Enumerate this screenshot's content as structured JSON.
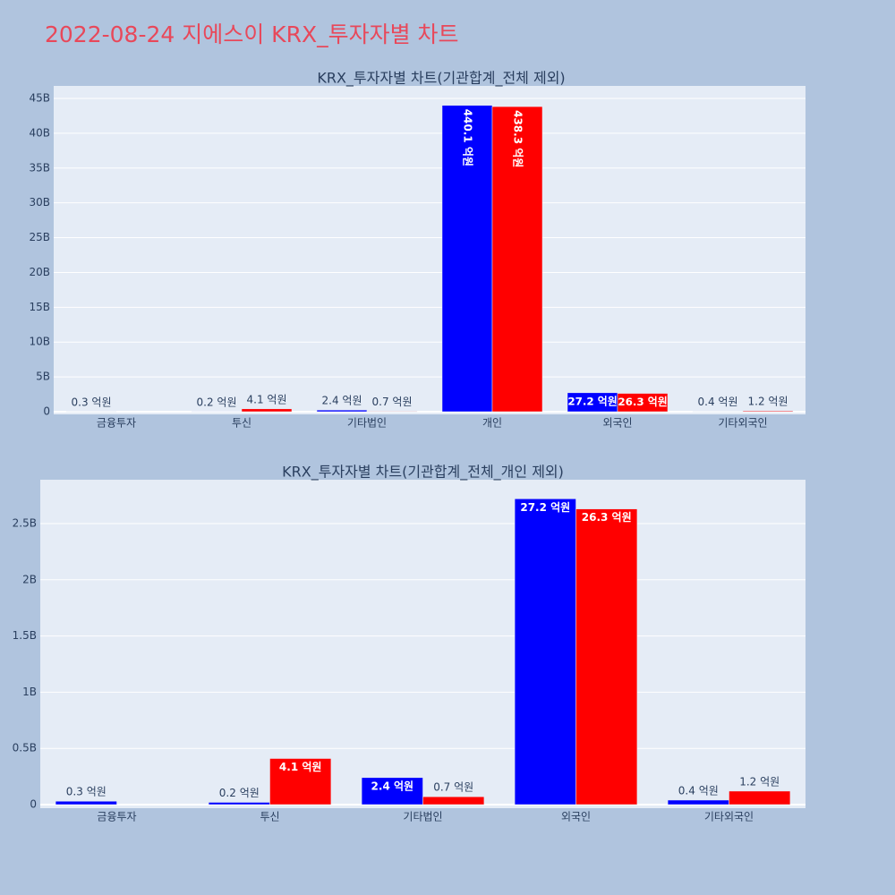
{
  "title": "2022-08-24 지에스이 KRX_투자자별 차트",
  "chart_data": [
    {
      "type": "bar",
      "title": "KRX_투자자별 차트(기관합계_전체 제외)",
      "categories": [
        "금융투자",
        "투신",
        "기타법인",
        "개인",
        "외국인",
        "기타외국인"
      ],
      "series": [
        {
          "color": "#0000ff",
          "values": [
            30000000,
            20000000,
            240000000,
            44010000000,
            2720000000,
            40000000
          ],
          "value_labels": [
            "0.3 억원",
            "0.2 억원",
            "2.4 억원",
            "440.1 억원",
            "27.2 억원",
            "0.4 억원"
          ]
        },
        {
          "color": "#ff0000",
          "values": [
            null,
            410000000,
            70000000,
            43830000000,
            2630000000,
            120000000
          ],
          "value_labels": [
            null,
            "4.1 억원",
            "0.7 억원",
            "438.3 억원",
            "26.3 억원",
            "1.2 억원"
          ]
        }
      ],
      "ylim": [
        0,
        46800000000
      ],
      "yticks": [
        0,
        {
          "value": 5000000000,
          "label": "5B"
        },
        {
          "value": 10000000000,
          "label": "10B"
        },
        {
          "value": 15000000000,
          "label": "15B"
        },
        {
          "value": 20000000000,
          "label": "20B"
        },
        {
          "value": 25000000000,
          "label": "25B"
        },
        {
          "value": 30000000000,
          "label": "30B"
        },
        {
          "value": 35000000000,
          "label": "35B"
        },
        {
          "value": 40000000000,
          "label": "40B"
        },
        {
          "value": 45000000000,
          "label": "45B"
        }
      ],
      "grid": true
    },
    {
      "type": "bar",
      "title": "KRX_투자자별 차트(기관합계_전체_개인 제외)",
      "categories": [
        "금융투자",
        "투신",
        "기타법인",
        "외국인",
        "기타외국인"
      ],
      "series": [
        {
          "color": "#0000ff",
          "values": [
            30000000,
            20000000,
            240000000,
            2720000000,
            40000000
          ],
          "value_labels": [
            "0.3 억원",
            "0.2 억원",
            "2.4 억원",
            "27.2 억원",
            "0.4 억원"
          ]
        },
        {
          "color": "#ff0000",
          "values": [
            null,
            410000000,
            70000000,
            2630000000,
            120000000
          ],
          "value_labels": [
            null,
            "4.1 억원",
            "0.7 억원",
            "26.3 억원",
            "1.2 억원"
          ]
        }
      ],
      "ylim": [
        0,
        2890000000
      ],
      "yticks": [
        0,
        {
          "value": 500000000,
          "label": "0.5B"
        },
        {
          "value": 1000000000,
          "label": "1B"
        },
        {
          "value": 1500000000,
          "label": "1.5B"
        },
        {
          "value": 2000000000,
          "label": "2B"
        },
        {
          "value": 2500000000,
          "label": "2.5B"
        }
      ],
      "grid": true
    }
  ]
}
